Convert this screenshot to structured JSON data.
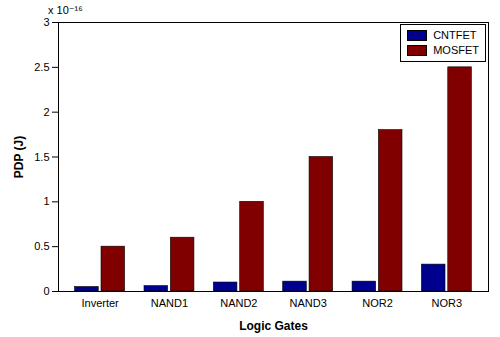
{
  "chart_data": {
    "type": "bar",
    "categories": [
      "Inverter",
      "NAND1",
      "NAND2",
      "NAND3",
      "NOR2",
      "NOR3"
    ],
    "series": [
      {
        "name": "CNTFET",
        "color": "#00008f",
        "values": [
          0.05,
          0.06,
          0.1,
          0.11,
          0.11,
          0.3
        ]
      },
      {
        "name": "MOSFET",
        "color": "#800000",
        "values": [
          0.5,
          0.6,
          1.0,
          1.5,
          1.8,
          2.5
        ]
      }
    ],
    "x_label": "Logic Gates",
    "y_label": "PDP (J)",
    "annotation": "x 10⁻¹⁶",
    "ylim": [
      0,
      3
    ],
    "yticks": [
      0,
      0.5,
      1,
      1.5,
      2,
      2.5,
      3
    ],
    "grid": false,
    "legend": "top-right"
  }
}
